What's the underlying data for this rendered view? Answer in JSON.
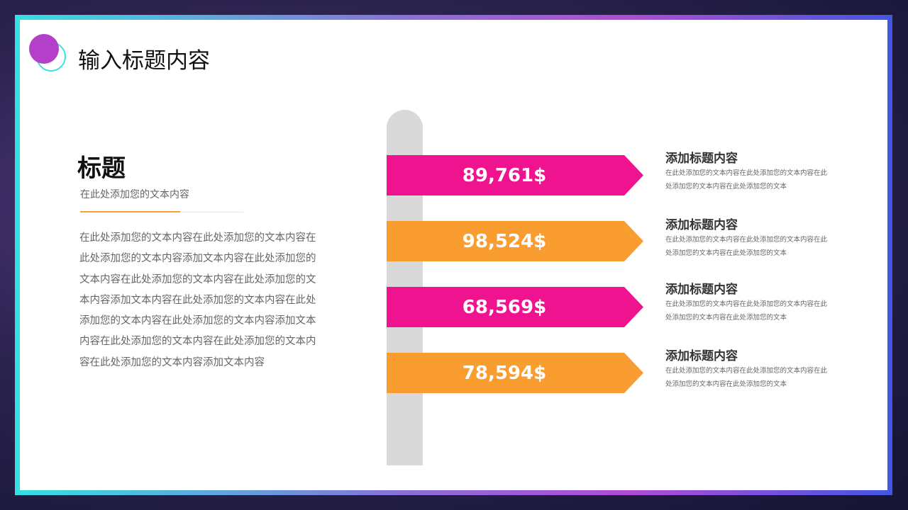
{
  "header": {
    "title": "输入标题内容"
  },
  "left": {
    "heading": "标题",
    "subtitle": "在此处添加您的文本内容",
    "body": "在此处添加您的文本内容在此处添加您的文本内容在此处添加您的文本内容添加文本内容在此处添加您的文本内容在此处添加您的文本内容在此处添加您的文本内容添加文本内容在此处添加您的文本内容在此处添加您的文本内容在此处添加您的文本内容添加文本内容在此处添加您的文本内容在此处添加您的文本内容在此处添加您的文本内容添加文本内容"
  },
  "colors": {
    "pink": "#f0138f",
    "orange": "#f99d31",
    "accent_purple": "#b43fc8",
    "accent_cyan": "#3ee0e0"
  },
  "signs": [
    {
      "value": "89,761$",
      "color": "#f0138f",
      "title": "添加标题内容",
      "desc": "在此处添加您的文本内容在此处添加您的文本内容在此处添加您的文本内容在此处添加您的文本"
    },
    {
      "value": "98,524$",
      "color": "#f99d31",
      "title": "添加标题内容",
      "desc": "在此处添加您的文本内容在此处添加您的文本内容在此处添加您的文本内容在此处添加您的文本"
    },
    {
      "value": "68,569$",
      "color": "#f0138f",
      "title": "添加标题内容",
      "desc": "在此处添加您的文本内容在此处添加您的文本内容在此处添加您的文本内容在此处添加您的文本"
    },
    {
      "value": "78,594$",
      "color": "#f99d31",
      "title": "添加标题内容",
      "desc": "在此处添加您的文本内容在此处添加您的文本内容在此处添加您的文本内容在此处添加您的文本"
    }
  ]
}
